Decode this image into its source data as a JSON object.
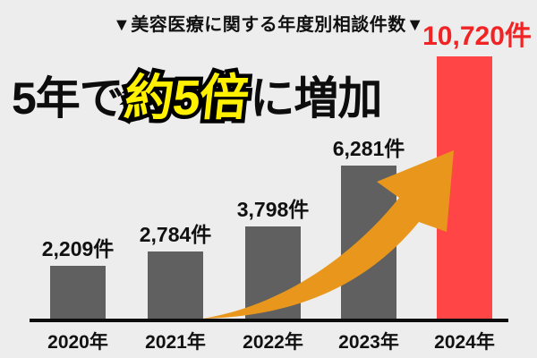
{
  "chart_data": {
    "type": "bar",
    "title": "▼美容医療に関する年度別相談件数▼",
    "headline": {
      "prefix": "5年で",
      "highlight": "約5倍",
      "suffix": "に増加"
    },
    "categories": [
      "2020年",
      "2021年",
      "2022年",
      "2023年",
      "2024年"
    ],
    "values": [
      2209,
      2784,
      3798,
      6281,
      10720
    ],
    "value_labels": [
      "2,209件",
      "2,784件",
      "3,798件",
      "6,281件",
      "10,720件"
    ],
    "unit": "件",
    "ylim": [
      0,
      10720
    ],
    "highlight_index": 4,
    "legend": "none",
    "grid": false
  },
  "colors": {
    "background": "#EDEDED",
    "bar_default": "#606060",
    "bar_highlight": "#FF4545",
    "value_label_default": "#111111",
    "value_label_highlight": "#F02424",
    "arrow": "#E8971C",
    "headline_highlight_fill": "#FFF100",
    "axis": "#0d0d0d"
  }
}
